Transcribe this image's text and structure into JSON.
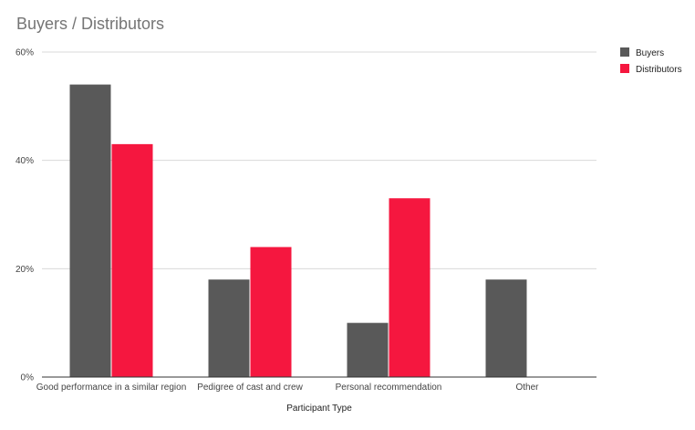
{
  "chart_data": {
    "type": "bar",
    "title": "Buyers / Distributors",
    "xlabel": "Participant Type",
    "ylabel": "",
    "categories": [
      "Good performance in a similar region",
      "Pedigree of cast and crew",
      "Personal recommendation",
      "Other"
    ],
    "series": [
      {
        "name": "Buyers",
        "color": "#595959",
        "values": [
          54,
          18,
          10,
          18
        ]
      },
      {
        "name": "Distributors",
        "color": "#f5173f",
        "values": [
          43,
          24,
          33,
          null
        ]
      }
    ],
    "ylim": [
      0,
      60
    ],
    "yticks": [
      0,
      20,
      40,
      60
    ],
    "ytick_labels": [
      "0%",
      "20%",
      "40%",
      "60%"
    ],
    "grid": true,
    "legend_position": "top-right"
  }
}
